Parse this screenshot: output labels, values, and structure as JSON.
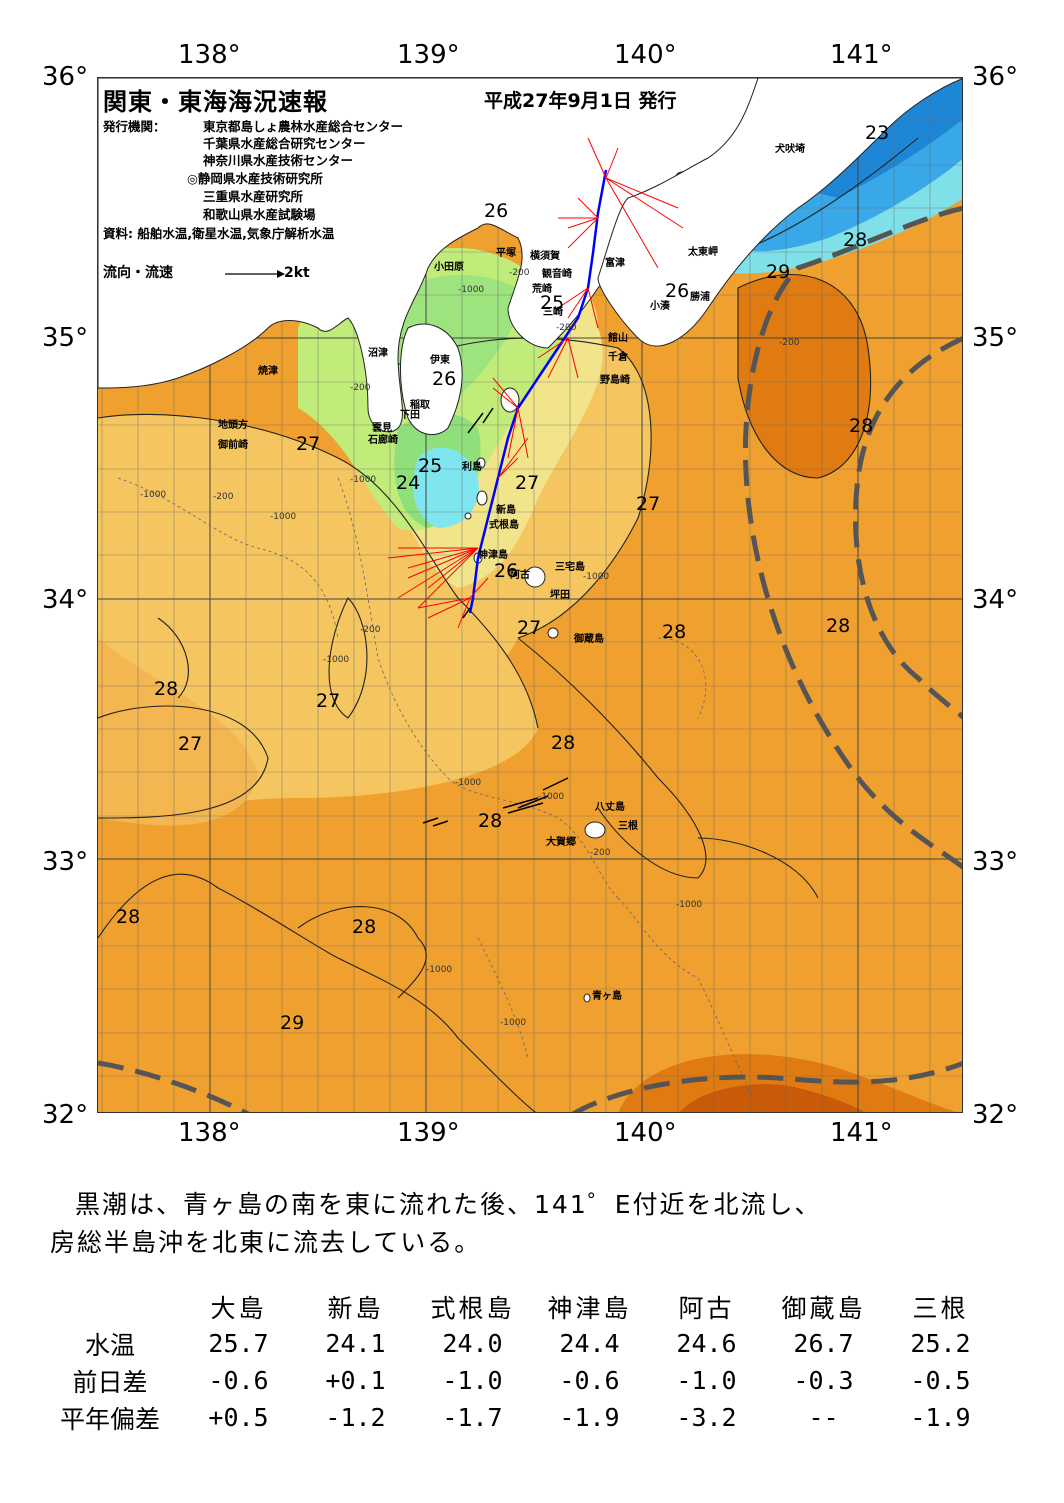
{
  "title": "関東・東海海況速報",
  "issue_date": "平成27年9月1日 発行",
  "issuers_label": "発行機関：",
  "issuers": [
    "東京都島しょ農林水産総合センター",
    "千葉県水産総合研究センター",
    "神奈川県水産技術センター",
    "◎静岡県水産技術研究所",
    "三重県水産研究所",
    "和歌山県水産試験場"
  ],
  "sources": "資料: 船舶水温,衛星水温,気象庁解析水温",
  "flow_legend": {
    "label": "流向・流速",
    "scale": "2kt"
  },
  "axes": {
    "top_lon": [
      "138°",
      "139°",
      "140°",
      "141°"
    ],
    "bottom_lon": [
      "138°",
      "139°",
      "140°",
      "141°"
    ],
    "left_lat": [
      "36°",
      "35°",
      "34°",
      "33°",
      "32°"
    ],
    "right_lat": [
      "36°",
      "35°",
      "34°",
      "33°",
      "32°"
    ]
  },
  "places": {
    "inubosaki": "犬吠埼",
    "taitomisaki": "太東岬",
    "katsuura": "勝浦",
    "kominato": "小湊",
    "futtsu": "富津",
    "tateyama": "館山",
    "chikura": "千倉",
    "nojimazaki": "野島崎",
    "yokosuka": "横須賀",
    "kannonzaki": "観音崎",
    "arasaki": "荒崎",
    "miura": "三崎",
    "hiratsuka": "平塚",
    "odawara": "小田原",
    "numazu": "沼津",
    "ito": "伊東",
    "inatori": "稲取",
    "shimoda": "下田",
    "mikomoto": "雲見",
    "irozaki": "石廊崎",
    "yaizu": "焼津",
    "jitogata": "地頭方",
    "omaezaki": "御前崎",
    "toshima": "利島",
    "niijima": "新島",
    "shikine": "式根島",
    "kozushima": "神津島",
    "ako": "阿古",
    "miyakejima": "三宅島",
    "tsubota": "坪田",
    "mikurajima": "御蔵島",
    "hachijojima": "八丈島",
    "mitsune": "三根",
    "okago": "大賀郷",
    "aogashima": "青ヶ島"
  },
  "temperature_labels": [
    "23",
    "28",
    "29",
    "26",
    "25",
    "26",
    "26",
    "28",
    "27",
    "25",
    "24",
    "27",
    "27",
    "26",
    "27",
    "28",
    "28",
    "28",
    "27",
    "27",
    "28",
    "28",
    "28",
    "28",
    "29"
  ],
  "depth_labels": [
    "-200",
    "-1000",
    "-200",
    "-1000",
    "-1000",
    "-200",
    "-1000",
    "-1000",
    "-1000",
    "-200",
    "-1000",
    "-1000",
    "-1000",
    "-1000",
    "-200",
    "-1000",
    "-200",
    "-200"
  ],
  "summary": [
    "黒潮は、青ヶ島の南を東に流れた後、141゜E付近を北流し、",
    "房総半島沖を北東に流去している。"
  ],
  "table": {
    "columns": [
      "大島",
      "新島",
      "式根島",
      "神津島",
      "阿古",
      "御蔵島",
      "三根"
    ],
    "rows": [
      {
        "label": "水温",
        "values": [
          "25.7",
          "24.1",
          "24.0",
          "24.4",
          "24.6",
          "26.7",
          "25.2"
        ]
      },
      {
        "label": "前日差",
        "values": [
          "-0.6",
          "+0.1",
          "-1.0",
          "-0.6",
          "-1.0",
          "-0.3",
          "-0.5"
        ]
      },
      {
        "label": "平年偏差",
        "values": [
          "+0.5",
          "-1.2",
          "-1.7",
          "-1.9",
          "-3.2",
          "--",
          "-1.9"
        ]
      }
    ]
  },
  "colors": {
    "sea_29": "#e8841c",
    "sea_28": "#f0a02e",
    "sea_27": "#f5c660",
    "sea_26": "#f2e48a",
    "sea_25": "#c2ec7a",
    "sea_24": "#8fe07a",
    "sea_cold": "#7fe6f0",
    "sea_23": "#39a8e8",
    "land": "#ffffff",
    "current_axis": "#555555",
    "flow_arrows": "#ff0000",
    "ship_track": "#0000ff"
  }
}
